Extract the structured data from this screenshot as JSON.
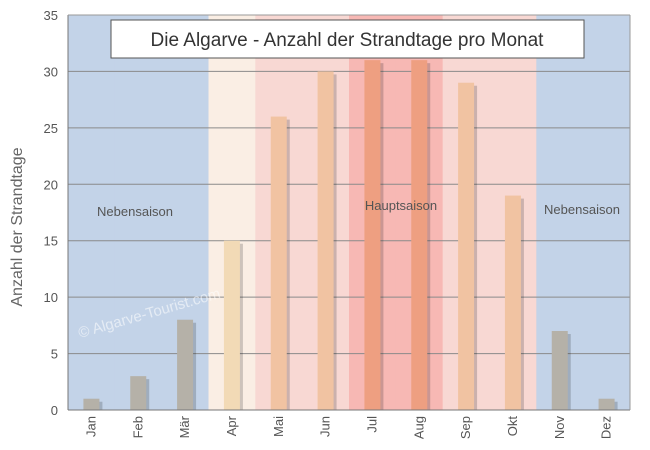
{
  "chart_data": {
    "type": "bar",
    "title": "Die Algarve - Anzahl der Strandtage pro Monat",
    "xlabel": "",
    "ylabel": "Anzahl der Strandtage",
    "ylim": [
      0,
      35
    ],
    "yticks": [
      0,
      5,
      10,
      15,
      20,
      25,
      30,
      35
    ],
    "grid": true,
    "categories": [
      "Jan",
      "Feb",
      "Mär",
      "Apr",
      "Mai",
      "Jun",
      "Jul",
      "Aug",
      "Sep",
      "Okt",
      "Nov",
      "Dez"
    ],
    "values": [
      1,
      3,
      8,
      15,
      26,
      30,
      31,
      31,
      29,
      19,
      7,
      1
    ],
    "season_labels": {
      "low_left": "Nebensaison",
      "high": "Hauptsaison",
      "low_right": "Nebensaison"
    },
    "watermark": "© Algarve-Tourist.com",
    "colors": {
      "low_season_bg": "#c3d3e8",
      "apr_bg": "#faeee4",
      "shoulder_bg": "#f8d8d3",
      "peak_bg": "#f7b8b4",
      "bar_low": "#b5b1a8",
      "bar_apr": "#f2dab6",
      "bar_shoulder": "#f1c3a2",
      "bar_peak": "#ee9f81"
    }
  }
}
